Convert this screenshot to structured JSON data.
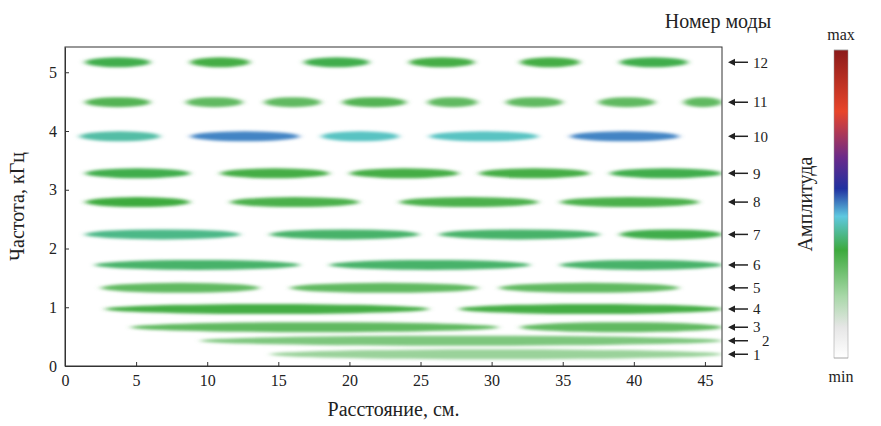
{
  "chart_data": {
    "type": "heatmap",
    "x_label": "Расстояние, см.",
    "y_label": "Частота, кГц",
    "y2_label": "Номер моды",
    "xlim": [
      0,
      46.2
    ],
    "xticks": [
      0,
      5,
      10,
      15,
      20,
      25,
      30,
      35,
      40,
      45
    ],
    "ylim": [
      0,
      5.43
    ],
    "yticks": [
      0,
      1,
      2,
      3,
      4,
      5
    ],
    "modes": [
      {
        "number": 1,
        "frequency": 0.2,
        "segments": [
          {
            "x": [
              14.4,
              46.2
            ],
            "amplitude": 0.22
          }
        ]
      },
      {
        "number": 2,
        "frequency": 0.43,
        "segments": [
          {
            "x": [
              9.5,
              46.2
            ],
            "amplitude": 0.26
          }
        ]
      },
      {
        "number": 3,
        "frequency": 0.66,
        "segments": [
          {
            "x": [
              4.6,
              30.5
            ],
            "amplitude": 0.3
          },
          {
            "x": [
              32,
              46.2
            ],
            "amplitude": 0.3
          }
        ]
      },
      {
        "number": 4,
        "frequency": 0.97,
        "segments": [
          {
            "x": [
              2.8,
              25.6
            ],
            "amplitude": 0.34
          },
          {
            "x": [
              27.7,
              46.2
            ],
            "amplitude": 0.34
          }
        ]
      },
      {
        "number": 5,
        "frequency": 1.33,
        "segments": [
          {
            "x": [
              2.5,
              13.7
            ],
            "amplitude": 0.3
          },
          {
            "x": [
              15.8,
              29.1
            ],
            "amplitude": 0.3
          },
          {
            "x": [
              30.5,
              43.2
            ],
            "amplitude": 0.3
          }
        ]
      },
      {
        "number": 6,
        "frequency": 1.72,
        "segments": [
          {
            "x": [
              2.1,
              16.5
            ],
            "amplitude": 0.38
          },
          {
            "x": [
              18.6,
              32.7
            ],
            "amplitude": 0.38
          },
          {
            "x": [
              34.8,
              46.2
            ],
            "amplitude": 0.38
          }
        ]
      },
      {
        "number": 7,
        "frequency": 2.24,
        "segments": [
          {
            "x": [
              1.4,
              12.3
            ],
            "amplitude": 0.4
          },
          {
            "x": [
              14.4,
              24.9
            ],
            "amplitude": 0.38
          },
          {
            "x": [
              26.3,
              37.6
            ],
            "amplitude": 0.38
          },
          {
            "x": [
              39,
              46.2
            ],
            "amplitude": 0.36
          }
        ]
      },
      {
        "number": 8,
        "frequency": 2.79,
        "segments": [
          {
            "x": [
              1.4,
              8.8
            ],
            "amplitude": 0.35
          },
          {
            "x": [
              11.6,
              20.7
            ],
            "amplitude": 0.33
          },
          {
            "x": [
              23.5,
              33.3
            ],
            "amplitude": 0.33
          },
          {
            "x": [
              34.8,
              44.6
            ],
            "amplitude": 0.33
          }
        ]
      },
      {
        "number": 9,
        "frequency": 3.28,
        "segments": [
          {
            "x": [
              1.4,
              8.8
            ],
            "amplitude": 0.36
          },
          {
            "x": [
              10.9,
              18.6
            ],
            "amplitude": 0.34
          },
          {
            "x": [
              20,
              27.7
            ],
            "amplitude": 0.34
          },
          {
            "x": [
              29.1,
              36.9
            ],
            "amplitude": 0.34
          },
          {
            "x": [
              38.3,
              46.2
            ],
            "amplitude": 0.36
          }
        ]
      },
      {
        "number": 10,
        "frequency": 3.91,
        "segments": [
          {
            "x": [
              1,
              6.7
            ],
            "amplitude": 0.42
          },
          {
            "x": [
              8.8,
              16.5
            ],
            "amplitude": 0.5
          },
          {
            "x": [
              18,
              23.5
            ],
            "amplitude": 0.44
          },
          {
            "x": [
              25.6,
              33.3
            ],
            "amplitude": 0.44
          },
          {
            "x": [
              35.5,
              43.2
            ],
            "amplitude": 0.5
          }
        ]
      },
      {
        "number": 11,
        "frequency": 4.49,
        "segments": [
          {
            "x": [
              1.4,
              6
            ],
            "amplitude": 0.32
          },
          {
            "x": [
              8.5,
              12.5
            ],
            "amplitude": 0.3
          },
          {
            "x": [
              14,
              18
            ],
            "amplitude": 0.3
          },
          {
            "x": [
              19.5,
              24
            ],
            "amplitude": 0.32
          },
          {
            "x": [
              25.5,
              29
            ],
            "amplitude": 0.3
          },
          {
            "x": [
              31,
              35
            ],
            "amplitude": 0.3
          },
          {
            "x": [
              37.5,
              41.5
            ],
            "amplitude": 0.3
          },
          {
            "x": [
              43.5,
              46.2
            ],
            "amplitude": 0.3
          }
        ]
      },
      {
        "number": 12,
        "frequency": 5.17,
        "segments": [
          {
            "x": [
              1.4,
              6
            ],
            "amplitude": 0.36
          },
          {
            "x": [
              8.8,
              13
            ],
            "amplitude": 0.34
          },
          {
            "x": [
              16.8,
              21.4
            ],
            "amplitude": 0.36
          },
          {
            "x": [
              24.2,
              28.8
            ],
            "amplitude": 0.34
          },
          {
            "x": [
              32,
              36.2
            ],
            "amplitude": 0.34
          },
          {
            "x": [
              39,
              43.8
            ],
            "amplitude": 0.36
          }
        ]
      }
    ],
    "colorbar": {
      "label": "Амплитуда",
      "range": [
        0,
        1
      ],
      "ticks": [
        {
          "value": 0,
          "label": "min"
        },
        {
          "value": 1,
          "label": "max"
        }
      ]
    }
  }
}
